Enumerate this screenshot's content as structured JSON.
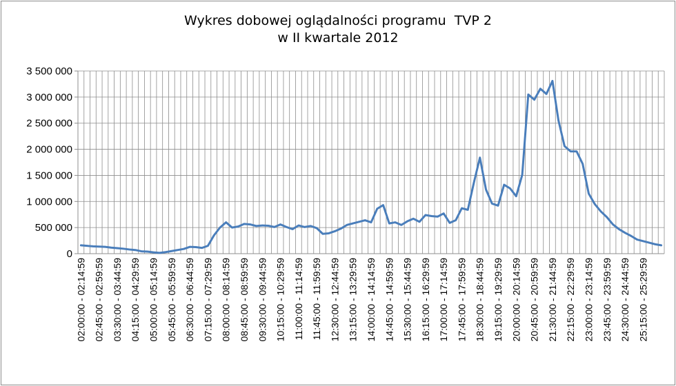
{
  "chart_data": {
    "type": "line",
    "title_line1": "Wykres dobowej oglądalności programu  TVP 2",
    "title_line2": "w II kwartale 2012",
    "xlabel": "",
    "ylabel": "",
    "ylim": [
      0,
      3500000
    ],
    "yticks": [
      0,
      500000,
      1000000,
      1500000,
      2000000,
      2500000,
      3000000,
      3500000
    ],
    "ytick_labels": [
      "0",
      "500 000",
      "1 000 000",
      "1 500 000",
      "2 000 000",
      "2 500 000",
      "3 000 000",
      "3 500 000"
    ],
    "grid": true,
    "legend": "none",
    "line_color": "#4a7ebb",
    "x_tick_labels": [
      "02:00:00 - 02:14:59",
      "02:45:00 - 02:59:59",
      "03:30:00 - 03:44:59",
      "04:15:00 - 04:29:59",
      "05:00:00 - 05:14:59",
      "05:45:00 - 05:59:59",
      "06:30:00 - 06:44:59",
      "07:15:00 - 07:29:59",
      "08:00:00 - 08:14:59",
      "08:45:00 - 08:59:59",
      "09:30:00 - 09:44:59",
      "10:15:00 - 10:29:59",
      "11:00:00 - 11:14:59",
      "11:45:00 - 11:59:59",
      "12:30:00 - 12:44:59",
      "13:15:00 - 13:29:59",
      "14:00:00 - 14:14:59",
      "14:45:00 - 14:59:59",
      "15:30:00 - 15:44:59",
      "16:15:00 - 16:29:59",
      "17:00:00 - 17:14:59",
      "17:45:00 - 17:59:59",
      "18:30:00 - 18:44:59",
      "19:15:00 - 19:29:59",
      "20:00:00 - 20:14:59",
      "20:45:00 - 20:59:59",
      "21:30:00 - 21:44:59",
      "22:15:00 - 22:29:59",
      "23:00:00 - 23:14:59",
      "23:45:00 - 23:59:59",
      "24:30:00 - 24:44:59",
      "25:15:00 - 25:29:59"
    ],
    "series": [
      {
        "values": [
          160000,
          150000,
          140000,
          135000,
          130000,
          115000,
          105000,
          95000,
          80000,
          70000,
          45000,
          40000,
          25000,
          15000,
          30000,
          50000,
          70000,
          90000,
          130000,
          125000,
          110000,
          150000,
          350000,
          500000,
          600000,
          500000,
          520000,
          570000,
          560000,
          530000,
          540000,
          535000,
          510000,
          560000,
          510000,
          470000,
          540000,
          510000,
          530000,
          490000,
          380000,
          390000,
          430000,
          480000,
          550000,
          580000,
          610000,
          640000,
          600000,
          860000,
          930000,
          580000,
          600000,
          550000,
          620000,
          670000,
          610000,
          740000,
          720000,
          710000,
          770000,
          590000,
          640000,
          870000,
          840000,
          1360000,
          1840000,
          1230000,
          960000,
          920000,
          1320000,
          1250000,
          1100000,
          1510000,
          3050000,
          2950000,
          3160000,
          3060000,
          3310000,
          2550000,
          2060000,
          1960000,
          1960000,
          1720000,
          1150000,
          950000,
          810000,
          700000,
          560000,
          470000,
          400000,
          340000,
          270000,
          240000,
          210000,
          180000,
          160000
        ]
      }
    ]
  }
}
